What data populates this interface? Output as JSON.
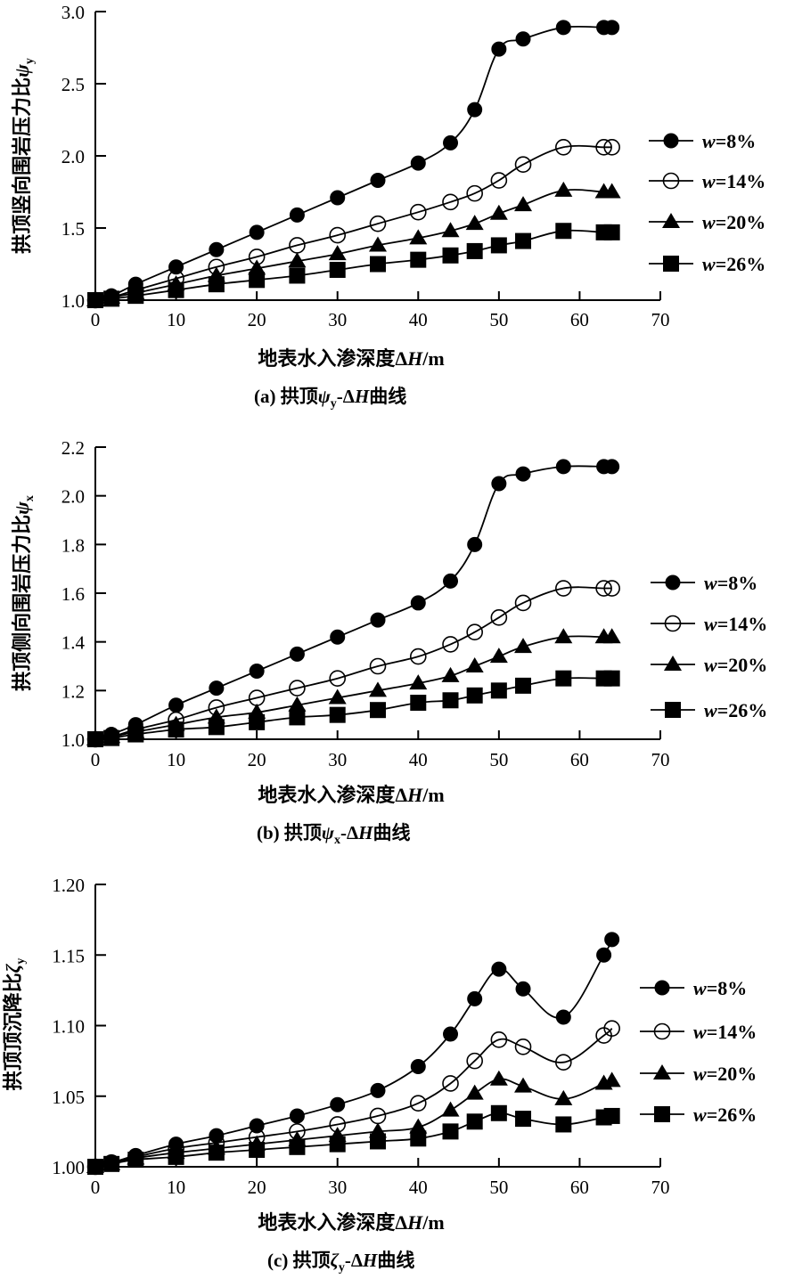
{
  "chart_data": [
    {
      "id": "a",
      "type": "line",
      "title": "",
      "caption": {
        "prefix": "(a) 拱顶",
        "symbol": "ψ",
        "sub": "y",
        "suffix_delta": "-Δ",
        "suffix_var": "H",
        "suffix": "曲线"
      },
      "xlabel": {
        "text": "地表水入渗深度Δ",
        "var": "H",
        "unit": "/m"
      },
      "ylabel": {
        "text": "拱顶竖向围岩压力比",
        "symbol": "ψ",
        "sub": "y"
      },
      "xlim": [
        0,
        70
      ],
      "ylim": [
        1.0,
        3.0
      ],
      "xticks": [
        0,
        10,
        20,
        30,
        40,
        50,
        60,
        70
      ],
      "yticks": [
        1.0,
        1.5,
        2.0,
        2.5,
        3.0
      ],
      "ytick_decimals": 1,
      "grid": false,
      "legend_position": "right",
      "x": [
        0,
        2,
        5,
        10,
        15,
        20,
        25,
        30,
        35,
        40,
        44,
        47,
        50,
        53,
        58,
        63,
        64
      ],
      "series": [
        {
          "name": "w=8%",
          "var": "w",
          "label": "=8%",
          "marker": "filled-circle",
          "values": [
            1.0,
            1.03,
            1.11,
            1.23,
            1.35,
            1.47,
            1.59,
            1.71,
            1.83,
            1.95,
            2.09,
            2.32,
            2.74,
            2.81,
            2.89,
            2.89,
            2.89
          ]
        },
        {
          "name": "w=14%",
          "var": "w",
          "label": "=14%",
          "marker": "open-circle",
          "values": [
            1.0,
            1.02,
            1.07,
            1.15,
            1.23,
            1.3,
            1.38,
            1.45,
            1.53,
            1.61,
            1.68,
            1.74,
            1.83,
            1.94,
            2.06,
            2.06,
            2.06
          ]
        },
        {
          "name": "w=20%",
          "var": "w",
          "label": "=20%",
          "marker": "filled-triangle",
          "values": [
            1.0,
            1.02,
            1.05,
            1.11,
            1.17,
            1.22,
            1.27,
            1.32,
            1.38,
            1.43,
            1.48,
            1.53,
            1.6,
            1.66,
            1.76,
            1.75,
            1.75
          ]
        },
        {
          "name": "w=26%",
          "var": "w",
          "label": "=26%",
          "marker": "filled-square",
          "values": [
            1.0,
            1.01,
            1.03,
            1.07,
            1.11,
            1.14,
            1.17,
            1.21,
            1.25,
            1.28,
            1.31,
            1.34,
            1.38,
            1.41,
            1.48,
            1.47,
            1.47
          ]
        }
      ]
    },
    {
      "id": "b",
      "type": "line",
      "title": "",
      "caption": {
        "prefix": "(b) 拱顶",
        "symbol": "ψ",
        "sub": "x",
        "suffix_delta": "-Δ",
        "suffix_var": "H",
        "suffix": "曲线"
      },
      "xlabel": {
        "text": "地表水入渗深度Δ",
        "var": "H",
        "unit": "/m"
      },
      "ylabel": {
        "text": "拱顶侧向围岩压力比",
        "symbol": "ψ",
        "sub": "x"
      },
      "xlim": [
        0,
        70
      ],
      "ylim": [
        1.0,
        2.2
      ],
      "xticks": [
        0,
        10,
        20,
        30,
        40,
        50,
        60,
        70
      ],
      "yticks": [
        1.0,
        1.2,
        1.4,
        1.6,
        1.8,
        2.0,
        2.2
      ],
      "ytick_decimals": 1,
      "grid": false,
      "legend_position": "right",
      "x": [
        0,
        2,
        5,
        10,
        15,
        20,
        25,
        30,
        35,
        40,
        44,
        47,
        50,
        53,
        58,
        63,
        64
      ],
      "series": [
        {
          "name": "w=8%",
          "var": "w",
          "label": "=8%",
          "marker": "filled-circle",
          "values": [
            1.0,
            1.02,
            1.06,
            1.14,
            1.21,
            1.28,
            1.35,
            1.42,
            1.49,
            1.56,
            1.65,
            1.8,
            2.05,
            2.09,
            2.12,
            2.12,
            2.12
          ]
        },
        {
          "name": "w=14%",
          "var": "w",
          "label": "=14%",
          "marker": "open-circle",
          "values": [
            1.0,
            1.01,
            1.04,
            1.08,
            1.13,
            1.17,
            1.21,
            1.25,
            1.3,
            1.34,
            1.39,
            1.44,
            1.5,
            1.56,
            1.62,
            1.62,
            1.62
          ]
        },
        {
          "name": "w=20%",
          "var": "w",
          "label": "=20%",
          "marker": "filled-triangle",
          "values": [
            1.0,
            1.01,
            1.03,
            1.06,
            1.09,
            1.11,
            1.14,
            1.17,
            1.2,
            1.23,
            1.26,
            1.3,
            1.34,
            1.38,
            1.42,
            1.42,
            1.42
          ]
        },
        {
          "name": "w=26%",
          "var": "w",
          "label": "=26%",
          "marker": "filled-square",
          "values": [
            1.0,
            1.005,
            1.02,
            1.04,
            1.05,
            1.07,
            1.09,
            1.1,
            1.12,
            1.15,
            1.16,
            1.18,
            1.2,
            1.22,
            1.25,
            1.25,
            1.25
          ]
        }
      ]
    },
    {
      "id": "c",
      "type": "line",
      "title": "",
      "caption": {
        "prefix": "(c) 拱顶",
        "symbol": "ζ",
        "sub": "y",
        "suffix_delta": "-Δ",
        "suffix_var": "H",
        "suffix": "曲线"
      },
      "xlabel": {
        "text": "地表水入渗深度Δ",
        "var": "H",
        "unit": "/m"
      },
      "ylabel": {
        "text": "拱顶顶沉降比",
        "symbol": "ζ",
        "sub": "y"
      },
      "xlim": [
        0,
        70
      ],
      "ylim": [
        1.0,
        1.2
      ],
      "xticks": [
        0,
        10,
        20,
        30,
        40,
        50,
        60,
        70
      ],
      "yticks": [
        1.0,
        1.05,
        1.1,
        1.15,
        1.2
      ],
      "ytick_decimals": 2,
      "grid": false,
      "legend_position": "right",
      "x": [
        0,
        2,
        5,
        10,
        15,
        20,
        25,
        30,
        35,
        40,
        44,
        47,
        50,
        53,
        58,
        63,
        64
      ],
      "series": [
        {
          "name": "w=8%",
          "var": "w",
          "label": "=8%",
          "marker": "filled-circle",
          "values": [
            1.0,
            1.003,
            1.008,
            1.016,
            1.022,
            1.029,
            1.036,
            1.044,
            1.054,
            1.071,
            1.094,
            1.119,
            1.14,
            1.126,
            1.106,
            1.15,
            1.161
          ]
        },
        {
          "name": "w=14%",
          "var": "w",
          "label": "=14%",
          "marker": "open-circle",
          "values": [
            1.0,
            1.003,
            1.007,
            1.013,
            1.017,
            1.021,
            1.025,
            1.03,
            1.036,
            1.045,
            1.059,
            1.075,
            1.09,
            1.085,
            1.074,
            1.093,
            1.098
          ]
        },
        {
          "name": "w=20%",
          "var": "w",
          "label": "=20%",
          "marker": "filled-triangle",
          "values": [
            1.0,
            1.002,
            1.006,
            1.01,
            1.013,
            1.016,
            1.019,
            1.022,
            1.025,
            1.028,
            1.04,
            1.052,
            1.062,
            1.057,
            1.048,
            1.059,
            1.061
          ]
        },
        {
          "name": "w=26%",
          "var": "w",
          "label": "=26%",
          "marker": "filled-square",
          "values": [
            1.0,
            1.002,
            1.005,
            1.007,
            1.01,
            1.012,
            1.014,
            1.016,
            1.018,
            1.02,
            1.025,
            1.032,
            1.038,
            1.034,
            1.03,
            1.035,
            1.036
          ]
        }
      ]
    }
  ]
}
